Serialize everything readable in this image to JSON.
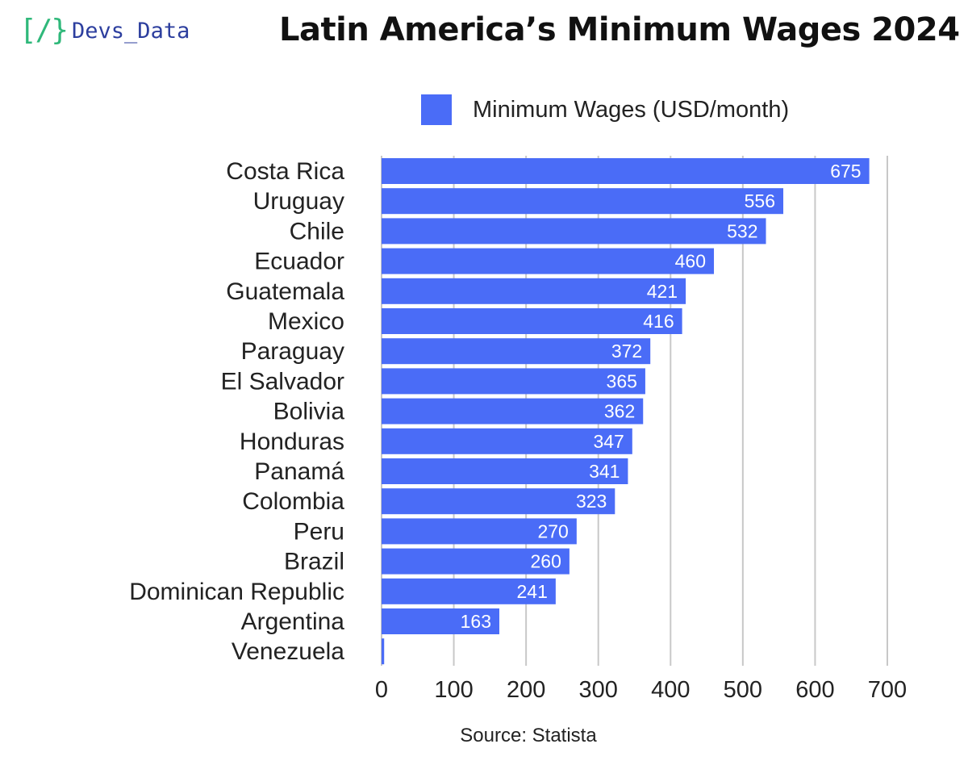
{
  "branding": {
    "logo_mark": "[/}",
    "logo_text": "Devs_Data"
  },
  "colors": {
    "bar": "#4a6cf7",
    "grid": "#c8c8c8",
    "axis": "#222222",
    "bar_label": "#ffffff",
    "logo_mark": "#2fb87a",
    "logo_text": "#2c3e9e"
  },
  "chart_data": {
    "type": "bar",
    "orientation": "horizontal",
    "title": "Latin America’s Minimum Wages 2024",
    "legend": [
      "Minimum Wages (USD/month)"
    ],
    "legend_position": "top",
    "categories": [
      "Costa Rica",
      "Uruguay",
      "Chile",
      "Ecuador",
      "Guatemala",
      "Mexico",
      "Paraguay",
      "El Salvador",
      "Bolivia",
      "Honduras",
      "Panamá",
      "Colombia",
      "Peru",
      "Brazil",
      "Dominican Republic",
      "Argentina",
      "Venezuela"
    ],
    "series": [
      {
        "name": "Minimum Wages (USD/month)",
        "values": [
          675,
          556,
          532,
          460,
          421,
          416,
          372,
          365,
          362,
          347,
          341,
          323,
          270,
          260,
          241,
          163,
          3.6
        ]
      }
    ],
    "data_labels": [
      "675",
      "556",
      "532",
      "460",
      "421",
      "416",
      "372",
      "365",
      "362",
      "347",
      "341",
      "323",
      "270",
      "260",
      "241",
      "163",
      ""
    ],
    "x_ticks": [
      "0",
      "100",
      "200",
      "300",
      "400",
      "500",
      "600",
      "700"
    ],
    "xlim": [
      0,
      700
    ],
    "grid": true,
    "source": "Source: Statista"
  }
}
